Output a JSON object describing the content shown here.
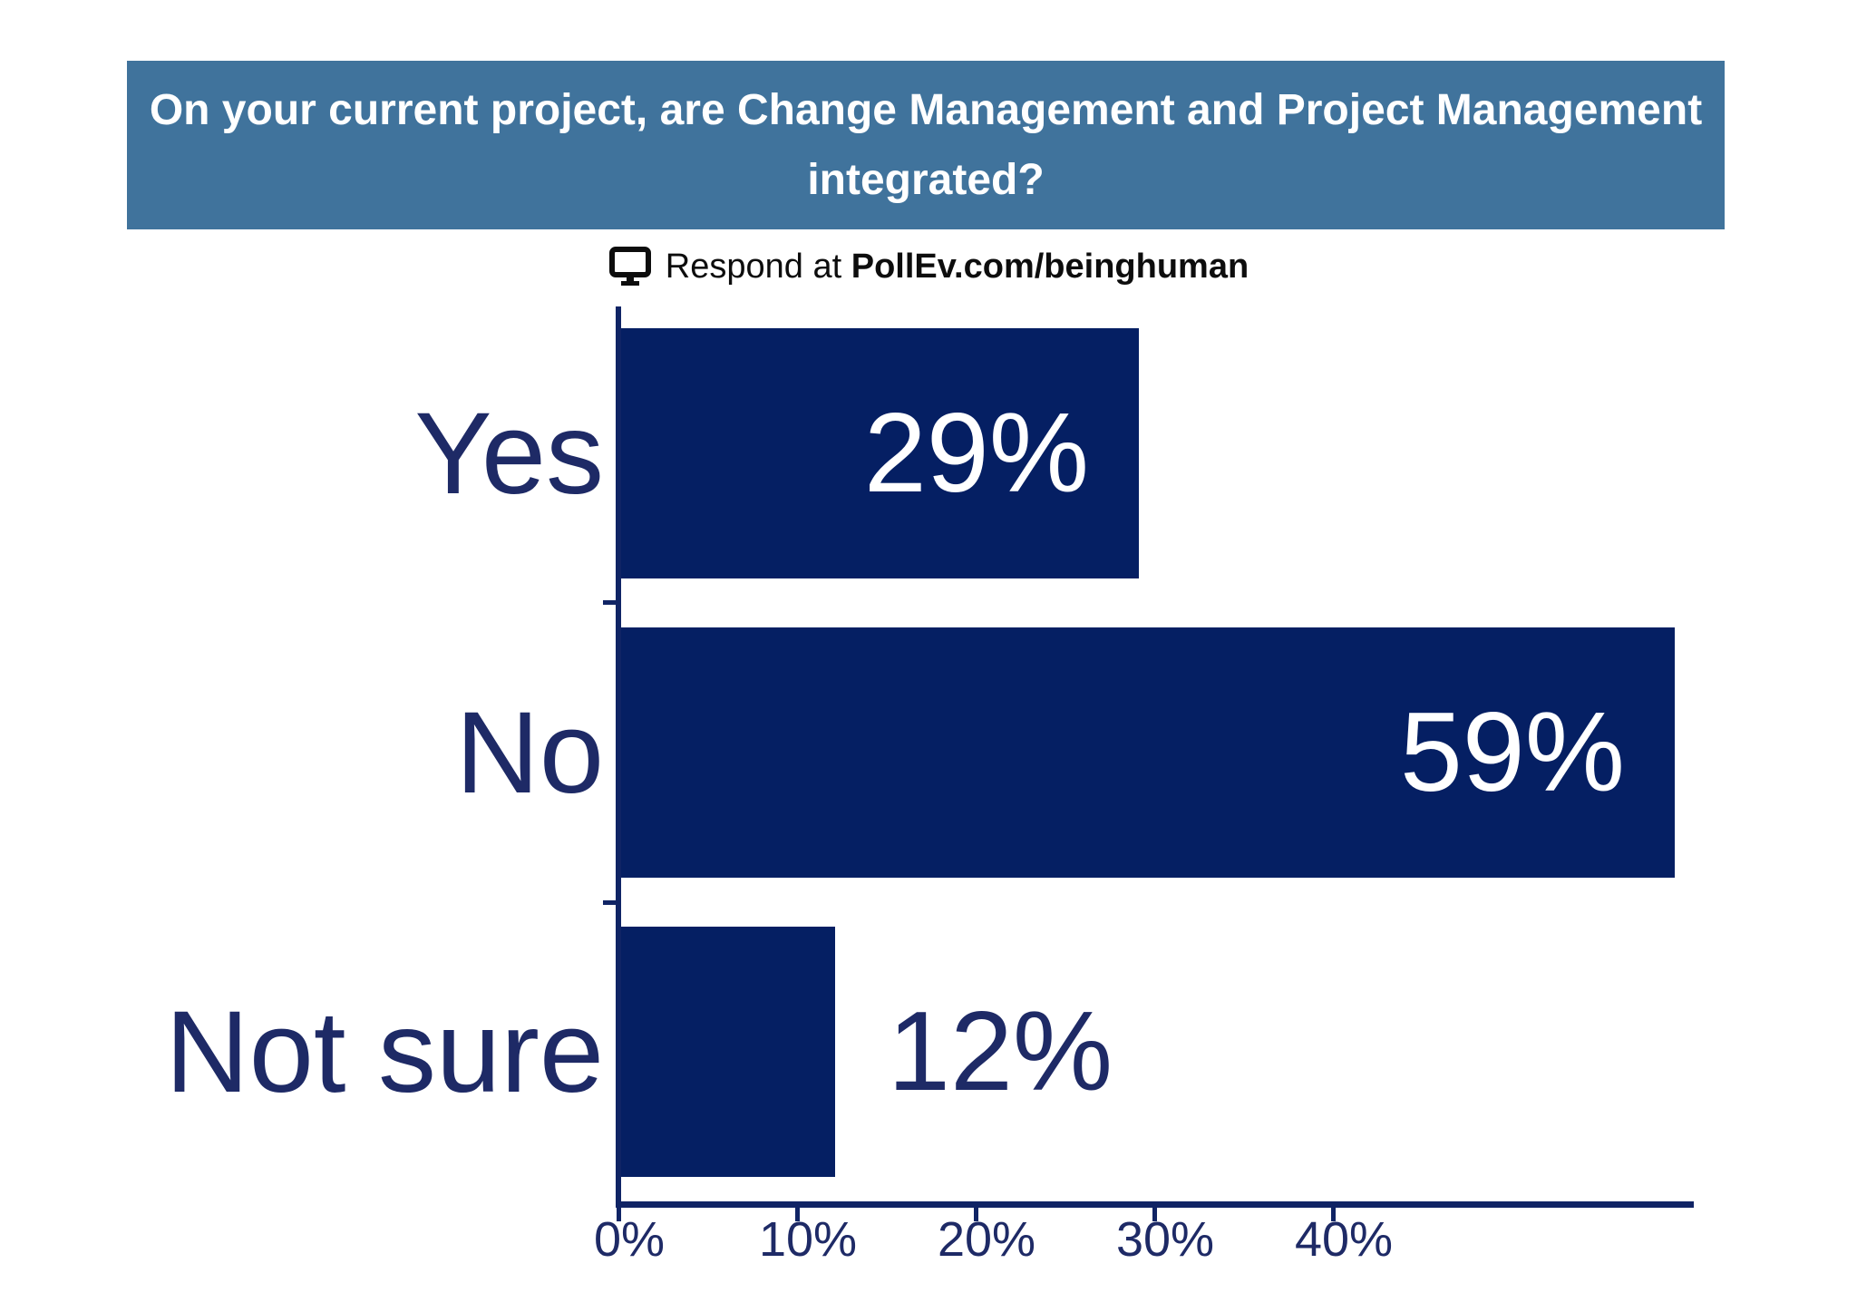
{
  "header": {
    "lines": [
      "On your current project, are Change Management and Project Management",
      "integrated?"
    ],
    "bg_color": "#40739c",
    "text_color": "#ffffff"
  },
  "respond": {
    "prefix": "Respond at ",
    "url": "PollEv.com/beinghuman",
    "icon": "monitor-icon"
  },
  "chart_data": {
    "type": "bar",
    "orientation": "horizontal",
    "title": "On your current project, are Change Management and Project Management integrated?",
    "categories": [
      "Yes",
      "No",
      "Not sure"
    ],
    "values": [
      29,
      59,
      12
    ],
    "value_labels": [
      "29%",
      "59%",
      "12%"
    ],
    "x_ticks": [
      "0%",
      "10%",
      "20%",
      "30%",
      "40%"
    ],
    "x_tick_values": [
      0,
      10,
      20,
      30,
      40
    ],
    "xlim": [
      0,
      60.4
    ],
    "xlabel": "",
    "ylabel": "",
    "grid": false,
    "legend": false,
    "bar_color": "#051f63",
    "axis_color": "#102465",
    "category_label_color": "#1e2a66",
    "tick_label_color": "#1e2a66",
    "value_label_inside_color": "#ffffff",
    "value_label_outside_color": "#1e2a66"
  }
}
